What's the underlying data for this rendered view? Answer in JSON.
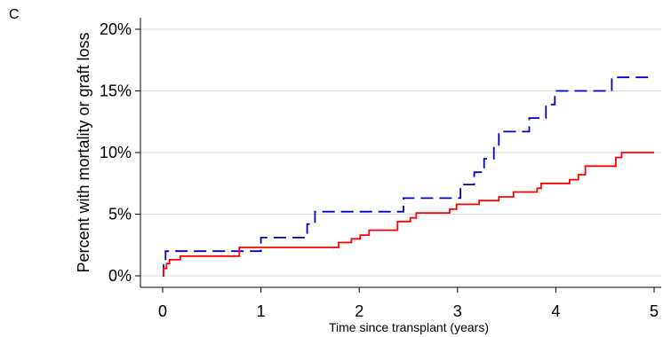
{
  "panel_label": "C",
  "chart_data": {
    "type": "line",
    "title": "",
    "xlabel": "Time since transplant (years)",
    "ylabel": "Percent with mortality or graft loss",
    "xlim": [
      0,
      5
    ],
    "ylim": [
      0,
      20
    ],
    "x_ticks": [
      0,
      1,
      2,
      3,
      4,
      5
    ],
    "x_tick_labels": [
      "0",
      "1",
      "2",
      "3",
      "4",
      "5"
    ],
    "y_ticks": [
      0,
      5,
      10,
      15,
      20
    ],
    "y_tick_labels": [
      "0%",
      "5%",
      "10%",
      "15%",
      "20%"
    ],
    "grid": "horizontal",
    "legend": "none",
    "series": [
      {
        "color": "#0000cc",
        "style": "dashed",
        "step": true,
        "points": [
          [
            0,
            0
          ],
          [
            0.01,
            0.9
          ],
          [
            0.03,
            2.0
          ],
          [
            0.99,
            2.0
          ],
          [
            1.0,
            3.1
          ],
          [
            1.46,
            3.1
          ],
          [
            1.47,
            4.2
          ],
          [
            1.54,
            4.2
          ],
          [
            1.55,
            5.2
          ],
          [
            2.44,
            5.2
          ],
          [
            2.45,
            6.3
          ],
          [
            3.02,
            6.3
          ],
          [
            3.03,
            7.4
          ],
          [
            3.16,
            7.4
          ],
          [
            3.17,
            8.4
          ],
          [
            3.26,
            8.4
          ],
          [
            3.27,
            9.5
          ],
          [
            3.36,
            9.5
          ],
          [
            3.37,
            10.5
          ],
          [
            3.41,
            10.5
          ],
          [
            3.42,
            11.7
          ],
          [
            3.72,
            11.7
          ],
          [
            3.73,
            12.8
          ],
          [
            3.89,
            12.8
          ],
          [
            3.9,
            13.9
          ],
          [
            3.98,
            13.9
          ],
          [
            3.99,
            15.0
          ],
          [
            4.56,
            15.0
          ],
          [
            4.57,
            16.1
          ],
          [
            5.0,
            16.1
          ]
        ]
      },
      {
        "color": "#ff0000",
        "style": "solid",
        "step": true,
        "points": [
          [
            0,
            0
          ],
          [
            0.01,
            0.6
          ],
          [
            0.04,
            1.0
          ],
          [
            0.07,
            1.3
          ],
          [
            0.17,
            1.3
          ],
          [
            0.18,
            1.6
          ],
          [
            0.77,
            1.6
          ],
          [
            0.78,
            2.3
          ],
          [
            1.78,
            2.3
          ],
          [
            1.79,
            2.7
          ],
          [
            1.91,
            2.7
          ],
          [
            1.92,
            3.0
          ],
          [
            2.0,
            3.0
          ],
          [
            2.01,
            3.3
          ],
          [
            2.09,
            3.3
          ],
          [
            2.1,
            3.7
          ],
          [
            2.38,
            3.7
          ],
          [
            2.39,
            4.4
          ],
          [
            2.51,
            4.4
          ],
          [
            2.52,
            4.7
          ],
          [
            2.57,
            4.7
          ],
          [
            2.58,
            5.1
          ],
          [
            2.91,
            5.1
          ],
          [
            2.92,
            5.4
          ],
          [
            2.98,
            5.4
          ],
          [
            2.99,
            5.8
          ],
          [
            3.21,
            5.8
          ],
          [
            3.22,
            6.1
          ],
          [
            3.41,
            6.1
          ],
          [
            3.42,
            6.4
          ],
          [
            3.56,
            6.4
          ],
          [
            3.57,
            6.8
          ],
          [
            3.8,
            6.8
          ],
          [
            3.81,
            7.1
          ],
          [
            3.84,
            7.1
          ],
          [
            3.85,
            7.5
          ],
          [
            4.13,
            7.5
          ],
          [
            4.14,
            7.8
          ],
          [
            4.22,
            7.8
          ],
          [
            4.23,
            8.2
          ],
          [
            4.29,
            8.2
          ],
          [
            4.3,
            8.9
          ],
          [
            4.6,
            8.9
          ],
          [
            4.61,
            9.6
          ],
          [
            4.66,
            9.6
          ],
          [
            4.67,
            10.0
          ],
          [
            5.0,
            10.0
          ]
        ]
      }
    ]
  }
}
